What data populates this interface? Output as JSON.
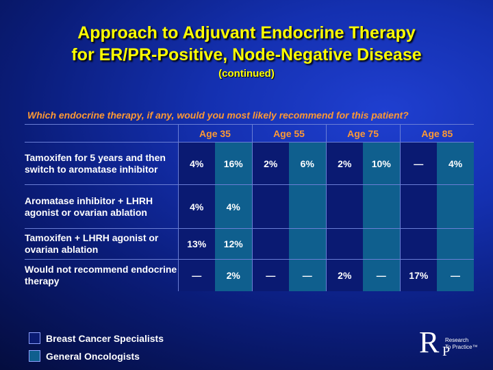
{
  "title": {
    "line1": "Approach to Adjuvant Endocrine Therapy",
    "line2": "for ER/PR-Positive, Node-Negative Disease",
    "subtitle": "(continued)"
  },
  "question": "Which endocrine therapy, if any, would you most likely recommend for this patient?",
  "table": {
    "age_groups": [
      "Age 35",
      "Age 55",
      "Age 75",
      "Age 85"
    ],
    "rows": [
      {
        "label": "Tamoxifen for 5 years and then switch to aromatase inhibitor",
        "values": [
          "4%",
          "16%",
          "2%",
          "6%",
          "2%",
          "10%",
          "—",
          "4%"
        ]
      },
      {
        "label": "Aromatase inhibitor + LHRH agonist or ovarian ablation",
        "values": [
          "4%",
          "4%",
          "",
          "",
          "",
          "",
          "",
          ""
        ]
      },
      {
        "label": "Tamoxifen + LHRH agonist or ovarian ablation",
        "values": [
          "13%",
          "12%",
          "",
          "",
          "",
          "",
          "",
          ""
        ]
      },
      {
        "label": "Would not recommend endocrine therapy",
        "values": [
          "—",
          "2%",
          "—",
          "—",
          "2%",
          "—",
          "17%",
          "—"
        ]
      }
    ]
  },
  "legend": [
    {
      "label": "Breast Cancer Specialists",
      "color": "#0a1a72"
    },
    {
      "label": "General Oncologists",
      "color": "#0f5f8e"
    }
  ],
  "logo": {
    "letter_r": "R",
    "letter_p": "P",
    "line1": "Research",
    "line2": "To Practice™"
  }
}
